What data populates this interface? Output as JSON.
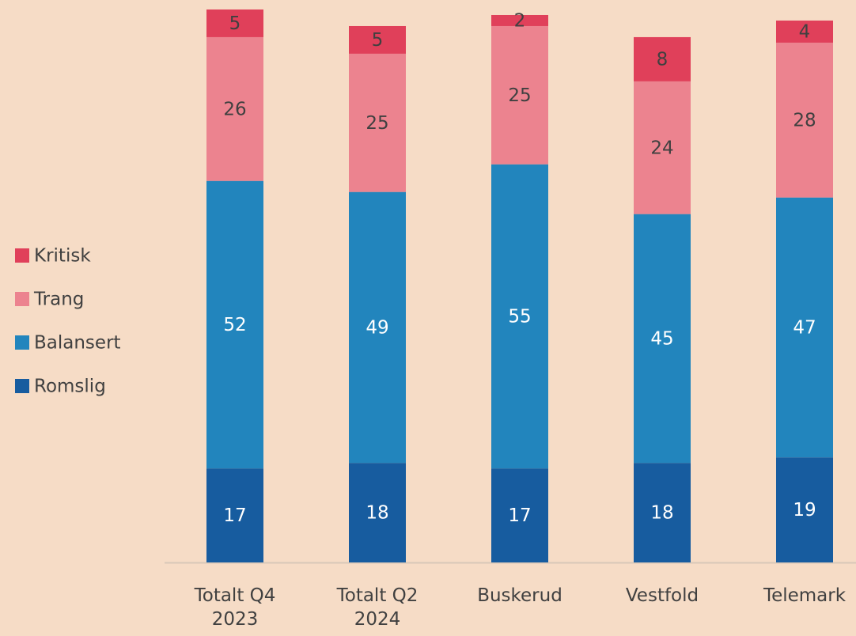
{
  "chart_data": {
    "type": "stacked_bar",
    "categories": [
      "Totalt Q4 2023",
      "Totalt Q2 2024",
      "Buskerud",
      "Vestfold",
      "Telemark"
    ],
    "series": [
      {
        "name": "Romslig",
        "color": "#175c9f",
        "label_color": "#ffffff",
        "values": [
          17,
          18,
          17,
          18,
          19
        ]
      },
      {
        "name": "Balansert",
        "color": "#2285bd",
        "label_color": "#ffffff",
        "values": [
          52,
          49,
          55,
          45,
          47
        ]
      },
      {
        "name": "Trang",
        "color": "#ec838f",
        "label_color": "#404040",
        "values": [
          26,
          25,
          25,
          24,
          28
        ]
      },
      {
        "name": "Kritisk",
        "color": "#e0405a",
        "label_color": "#404040",
        "values": [
          5,
          5,
          2,
          8,
          4
        ]
      }
    ]
  }
}
